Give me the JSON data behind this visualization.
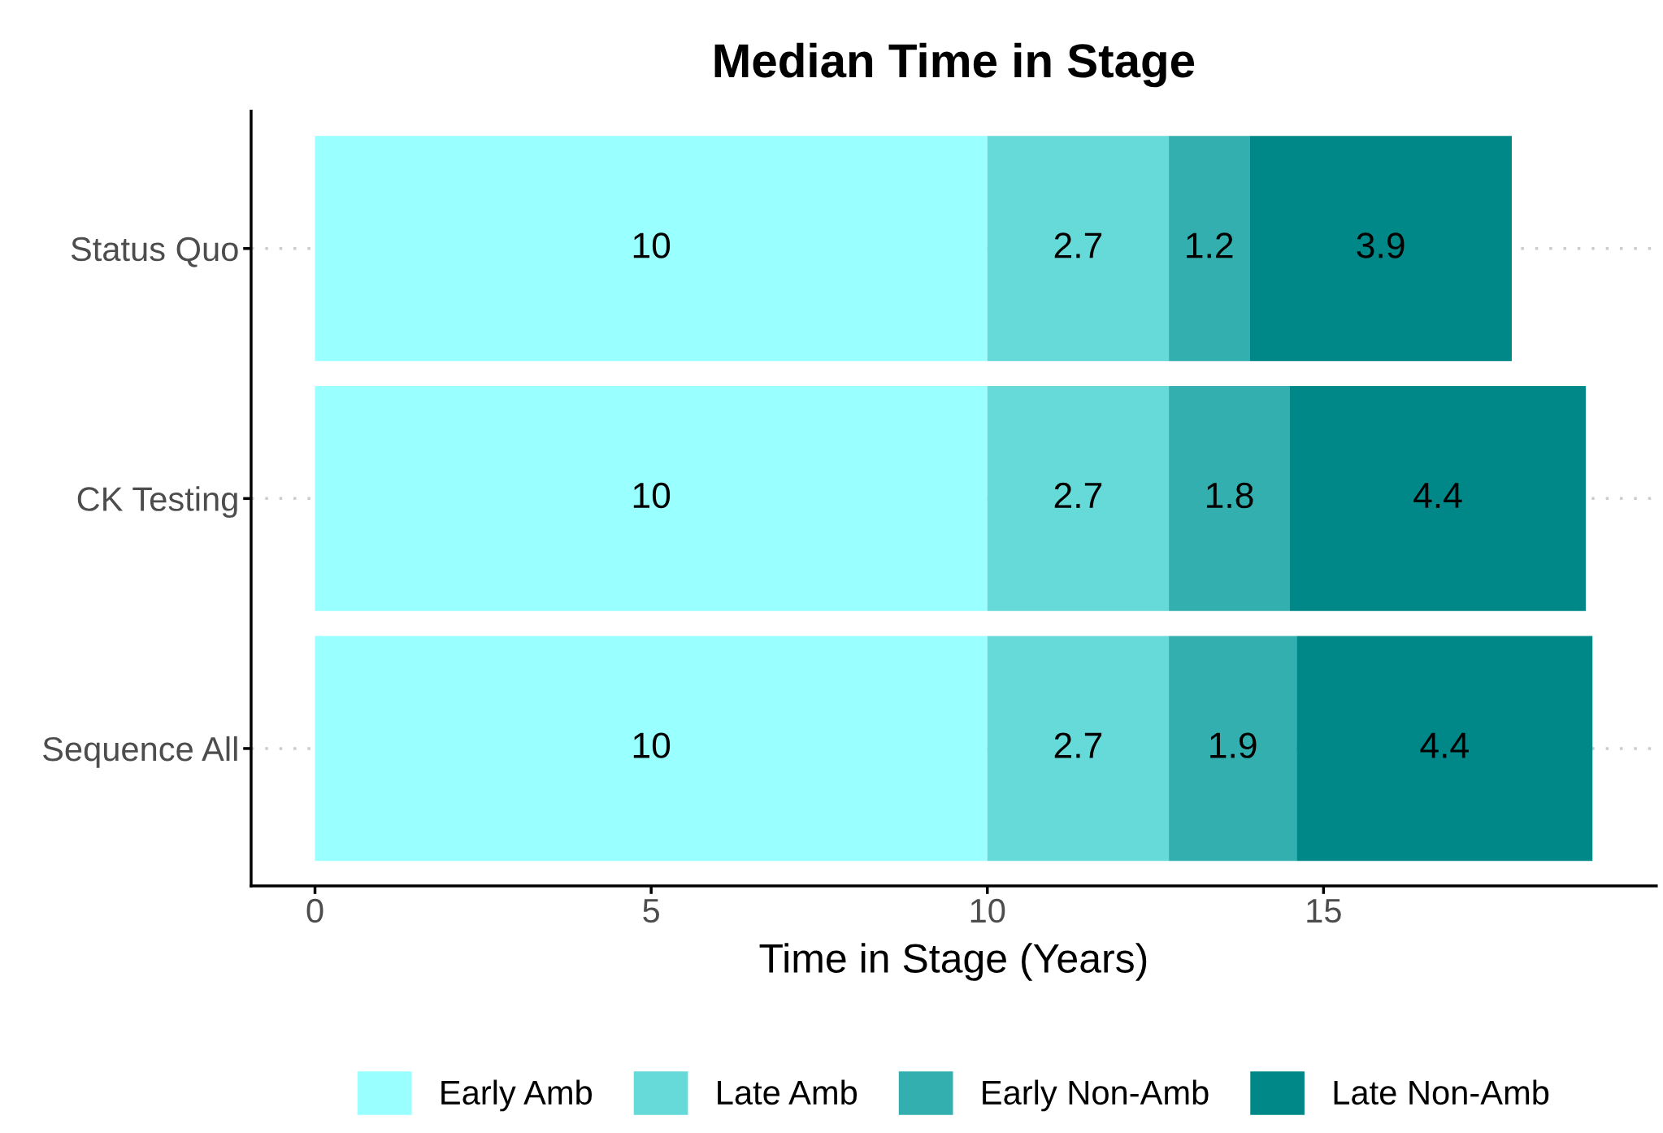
{
  "chart_data": {
    "type": "bar",
    "orientation": "horizontal",
    "stacked": true,
    "title": "Median Time in Stage",
    "xlabel": "Time in Stage (Years)",
    "categories": [
      "Status Quo",
      "CK Testing",
      "Sequence All"
    ],
    "series": [
      {
        "name": "Early Amb",
        "color": "#99ffff",
        "values": [
          10,
          10,
          10
        ]
      },
      {
        "name": "Late Amb",
        "color": "#66d9d9",
        "values": [
          2.7,
          2.7,
          2.7
        ]
      },
      {
        "name": "Early Non-Amb",
        "color": "#33afaf",
        "values": [
          1.2,
          1.8,
          1.9
        ]
      },
      {
        "name": "Late Non-Amb",
        "color": "#008888",
        "values": [
          3.9,
          4.4,
          4.4
        ]
      }
    ],
    "xlim": [
      -0.95,
      19.95
    ],
    "xticks": [
      0,
      5,
      10,
      15
    ],
    "data_labels": true,
    "grid": "y",
    "legend": "bottom"
  }
}
